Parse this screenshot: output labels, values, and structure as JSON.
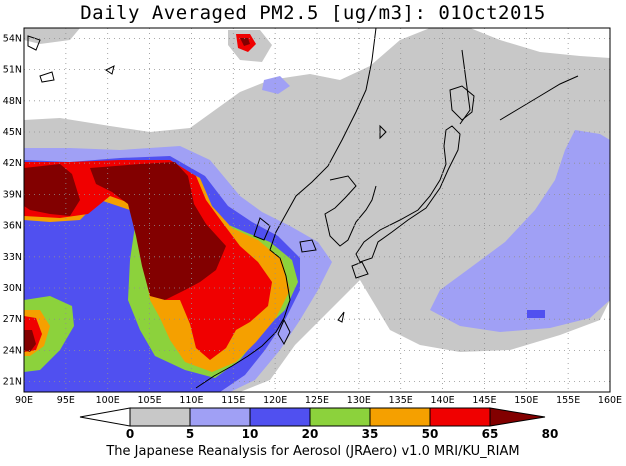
{
  "title": "Daily Averaged PM2.5 [ug/m3]: 01Oct2015",
  "footer": "The Japanese Reanalysis for Aerosol (JRAero) v1.0 MRI/KU_RIAM",
  "map": {
    "lon_range": [
      90,
      160
    ],
    "lat_range": [
      20,
      55
    ],
    "lon_ticks": [
      "90E",
      "95E",
      "100E",
      "105E",
      "110E",
      "115E",
      "120E",
      "125E",
      "130E",
      "135E",
      "140E",
      "145E",
      "150E",
      "155E",
      "160E"
    ],
    "lat_ticks": [
      "21N",
      "24N",
      "27N",
      "30N",
      "33N",
      "36N",
      "39N",
      "42N",
      "45N",
      "48N",
      "51N",
      "54N"
    ]
  },
  "colorbar": {
    "labels": [
      "0",
      "5",
      "10",
      "20",
      "35",
      "50",
      "65",
      "80"
    ],
    "colors": [
      "#ffffff",
      "#c8c8c8",
      "#a0a0f5",
      "#5050f0",
      "#8cd23c",
      "#f5a000",
      "#f00000",
      "#820000"
    ]
  }
}
